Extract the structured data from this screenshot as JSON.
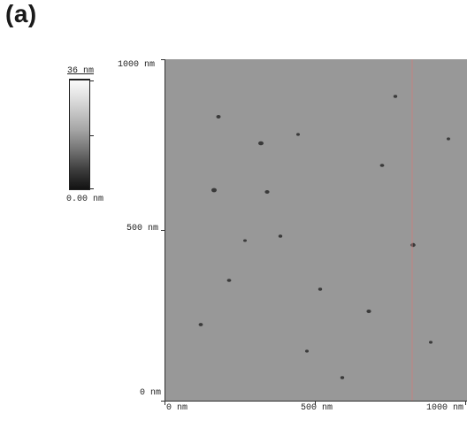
{
  "panel": {
    "label": "(a)"
  },
  "color_scale": {
    "max_label": "36 nm",
    "min_label": "0.00 nm",
    "gradient_colors": [
      "#fbfbfb",
      "#d8d8d8",
      "#a6a6a6",
      "#707070",
      "#3d3d3d",
      "#121212"
    ]
  },
  "axes": {
    "y_ticks": [
      "1000 nm",
      "500 nm",
      "0 nm"
    ],
    "x_ticks": [
      "0 nm",
      "500 nm",
      "1000 nm"
    ]
  },
  "image": {
    "description_colors": {
      "base": "#9a9a9a",
      "light": "#e2e2e2",
      "dark": "#2a2a2a",
      "scan_line": "#c9807e"
    }
  }
}
